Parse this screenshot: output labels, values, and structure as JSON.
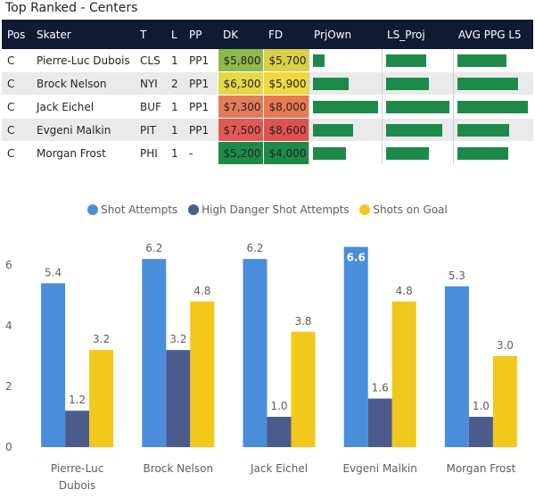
{
  "title": "Top Ranked - Centers",
  "table": {
    "headers": [
      "Pos",
      "Skater",
      "T",
      "L",
      "PP",
      "DK",
      "FD",
      "PrjOwn",
      "LS_Proj",
      "AVG PPG L5"
    ],
    "rows": [
      {
        "pos": "C",
        "skater": "Pierre-Luc Dubois",
        "team": "CLS",
        "line": "1",
        "pp": "PP1",
        "dk": "$5,800",
        "fd": "$5,700",
        "dk_color": "#8dba49",
        "fd_color": "#d8d045",
        "prjown": 0.19,
        "ls_proj": 0.64,
        "avg_ppg": 0.68
      },
      {
        "pos": "C",
        "skater": "Brock Nelson",
        "team": "NYI",
        "line": "2",
        "pp": "PP1",
        "dk": "$6,300",
        "fd": "$5,900",
        "dk_color": "#e5d845",
        "fd_color": "#f0d840",
        "prjown": 0.55,
        "ls_proj": 0.69,
        "avg_ppg": 0.84
      },
      {
        "pos": "C",
        "skater": "Jack Eichel",
        "team": "BUF",
        "line": "1",
        "pp": "PP1",
        "dk": "$7,300",
        "fd": "$8,000",
        "dk_color": "#e47b5b",
        "fd_color": "#e87a54",
        "prjown": 1.0,
        "ls_proj": 1.0,
        "avg_ppg": 0.97
      },
      {
        "pos": "C",
        "skater": "Evgeni Malkin",
        "team": "PIT",
        "line": "1",
        "pp": "PP1",
        "dk": "$7,500",
        "fd": "$8,600",
        "dk_color": "#e25a53",
        "fd_color": "#e0524f",
        "prjown": 0.62,
        "ls_proj": 0.89,
        "avg_ppg": 0.72
      },
      {
        "pos": "C",
        "skater": "Morgan Frost",
        "team": "PHI",
        "line": "1",
        "pp": "-",
        "dk": "$5,200",
        "fd": "$4,000",
        "dk_color": "#1d8a4a",
        "fd_color": "#1d8a4a",
        "prjown": 0.51,
        "ls_proj": 0.69,
        "avg_ppg": 0.7
      }
    ]
  },
  "legend": [
    {
      "label": "Shot Attempts",
      "color": "#4a8ddb"
    },
    {
      "label": "High Danger Shot Attempts",
      "color": "#4b5b8c"
    },
    {
      "label": "Shots on Goal",
      "color": "#f1c81b"
    }
  ],
  "chart_data": {
    "type": "bar",
    "categories": [
      "Pierre-Luc Dubois",
      "Brock Nelson",
      "Jack Eichel",
      "Evgeni Malkin",
      "Morgan Frost"
    ],
    "series": [
      {
        "name": "Shot Attempts",
        "values": [
          5.4,
          6.2,
          6.2,
          6.6,
          5.3
        ],
        "labels": [
          "5.4",
          "6.2",
          "6.2",
          "6.6",
          "5.3"
        ]
      },
      {
        "name": "High Danger Shot Attempts",
        "values": [
          1.2,
          3.2,
          1.0,
          1.6,
          1.0
        ],
        "labels": [
          "1.2",
          "3.2",
          "1.0",
          "1.6",
          "1.0"
        ]
      },
      {
        "name": "Shots on Goal",
        "values": [
          3.2,
          4.8,
          3.8,
          4.8,
          3.0
        ],
        "labels": [
          "3.2",
          "4.8",
          "3.8",
          "4.8",
          "3.0"
        ]
      }
    ],
    "yticks": [
      "0",
      "2",
      "4",
      "6"
    ],
    "ylim": [
      0,
      7
    ],
    "title": "",
    "xlabel": "",
    "ylabel": ""
  }
}
